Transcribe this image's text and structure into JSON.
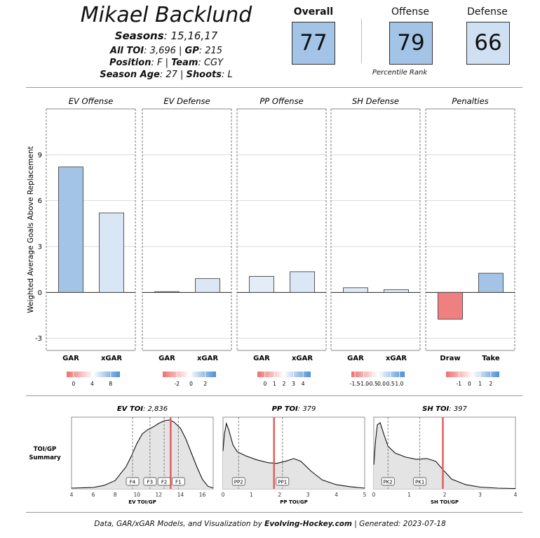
{
  "header": {
    "player_name": "Mikael Backlund",
    "seasons_label": "Seasons",
    "seasons_value": "15,16,17",
    "all_toi_label": "All TOI",
    "all_toi_value": "3,696",
    "gp_label": "GP",
    "gp_value": "215",
    "position_label": "Position",
    "position_value": "F",
    "team_label": "Team",
    "team_value": "CGY",
    "season_age_label": "Season Age",
    "season_age_value": "27",
    "shoots_label": "Shoots",
    "shoots_value": "L"
  },
  "ranks": {
    "overall_label": "Overall",
    "overall_value": "77",
    "offense_label": "Offense",
    "offense_value": "79",
    "defense_label": "Defense",
    "defense_value": "66",
    "caption": "Percentile Rank",
    "colors": {
      "overall": "#a3c4e6",
      "offense": "#a3c4e6",
      "defense": "#cfe0f3"
    }
  },
  "chart_data": [
    {
      "type": "bar",
      "ylabel": "Weighted Average Goals Above Replacement",
      "ylim": [
        -3.8,
        12
      ],
      "yticks": [
        -3,
        0,
        3,
        6,
        9
      ],
      "grid": true,
      "panels": [
        {
          "title": "EV Offense",
          "categories": [
            "GAR",
            "xGAR"
          ],
          "values": [
            8.2,
            5.2
          ],
          "colors": [
            "#a3c4e6",
            "#d9e6f5"
          ],
          "legend_ticks": [
            "0",
            "4",
            "8"
          ],
          "legend_range": [
            -1.5,
            10
          ]
        },
        {
          "title": "EV Defense",
          "categories": [
            "GAR",
            "xGAR"
          ],
          "values": [
            0.05,
            0.9
          ],
          "colors": [
            "#eef3f9",
            "#dbe7f5"
          ],
          "legend_ticks": [
            "-2",
            "0",
            "2"
          ],
          "legend_range": [
            -4,
            3.5
          ]
        },
        {
          "title": "PP Offense",
          "categories": [
            "GAR",
            "xGAR"
          ],
          "values": [
            1.05,
            1.35
          ],
          "colors": [
            "#e3ecf7",
            "#dbe7f5"
          ],
          "legend_ticks": [
            "0",
            "1",
            "2",
            "3",
            "4"
          ],
          "legend_range": [
            -0.8,
            4.8
          ]
        },
        {
          "title": "SH Defense",
          "categories": [
            "GAR",
            "xGAR"
          ],
          "values": [
            0.3,
            0.18
          ],
          "colors": [
            "#dfe9f6",
            "#e3ecf7"
          ],
          "legend_ticks": [
            "-1.5",
            "-1.0",
            "-0.5",
            "0.0",
            "0.5",
            "1.0"
          ],
          "legend_range": [
            -1.7,
            1.3
          ]
        },
        {
          "title": "Penalties",
          "categories": [
            "Draw",
            "Take"
          ],
          "values": [
            -1.75,
            1.25
          ],
          "colors": [
            "#ee8080",
            "#a3c4e6"
          ],
          "legend_ticks": [
            "-1",
            "0",
            "1",
            "2"
          ],
          "legend_range": [
            -2.2,
            2.8
          ]
        }
      ]
    },
    {
      "type": "area",
      "title": "TOI/GP Summary",
      "panels": [
        {
          "title_label": "EV TOI",
          "title_value": "2,836",
          "xlabel": "EV TOI/GP",
          "xlim": [
            4,
            17
          ],
          "xticks": [
            4,
            6,
            8,
            10,
            12,
            14,
            16
          ],
          "player_value": 13.1,
          "density": [
            [
              4,
              0.01
            ],
            [
              6,
              0.02
            ],
            [
              7,
              0.05
            ],
            [
              8,
              0.12
            ],
            [
              9,
              0.32
            ],
            [
              9.5,
              0.48
            ],
            [
              10,
              0.66
            ],
            [
              10.5,
              0.8
            ],
            [
              11,
              0.86
            ],
            [
              11.5,
              0.9
            ],
            [
              12,
              0.95
            ],
            [
              12.5,
              0.99
            ],
            [
              13,
              1.0
            ],
            [
              13.4,
              0.97
            ],
            [
              14,
              0.88
            ],
            [
              14.5,
              0.72
            ],
            [
              15,
              0.52
            ],
            [
              15.5,
              0.32
            ],
            [
              16,
              0.14
            ],
            [
              16.5,
              0.04
            ],
            [
              17,
              0.01
            ]
          ],
          "markers": [
            {
              "label": "F4",
              "x": 9.6
            },
            {
              "label": "F3",
              "x": 11.2
            },
            {
              "label": "F2",
              "x": 12.5
            },
            {
              "label": "F1",
              "x": 13.8
            }
          ]
        },
        {
          "title_label": "PP TOI",
          "title_value": "379",
          "xlabel": "PP TOI/GP",
          "xlim": [
            0,
            5
          ],
          "xticks": [
            0,
            1,
            2,
            3,
            4,
            5
          ],
          "player_value": 1.8,
          "density": [
            [
              0,
              0.55
            ],
            [
              0.05,
              0.8
            ],
            [
              0.12,
              0.95
            ],
            [
              0.2,
              0.86
            ],
            [
              0.35,
              0.64
            ],
            [
              0.5,
              0.54
            ],
            [
              0.8,
              0.48
            ],
            [
              1.2,
              0.42
            ],
            [
              1.6,
              0.38
            ],
            [
              1.9,
              0.37
            ],
            [
              2.2,
              0.4
            ],
            [
              2.5,
              0.44
            ],
            [
              2.75,
              0.4
            ],
            [
              3.1,
              0.26
            ],
            [
              3.5,
              0.13
            ],
            [
              4,
              0.06
            ],
            [
              4.5,
              0.03
            ],
            [
              5,
              0.01
            ]
          ],
          "markers": [
            {
              "label": "PP2",
              "x": 0.55
            },
            {
              "label": "PP1",
              "x": 2.1
            }
          ]
        },
        {
          "title_label": "SH TOI",
          "title_value": "397",
          "xlabel": "SH TOI/GP",
          "xlim": [
            0,
            4
          ],
          "xticks": [
            0,
            1,
            2,
            3,
            4
          ],
          "player_value": 1.95,
          "density": [
            [
              0,
              0.35
            ],
            [
              0.05,
              0.7
            ],
            [
              0.1,
              0.93
            ],
            [
              0.18,
              0.96
            ],
            [
              0.28,
              0.8
            ],
            [
              0.4,
              0.62
            ],
            [
              0.6,
              0.52
            ],
            [
              0.9,
              0.46
            ],
            [
              1.2,
              0.43
            ],
            [
              1.5,
              0.44
            ],
            [
              1.75,
              0.4
            ],
            [
              1.95,
              0.28
            ],
            [
              2.2,
              0.14
            ],
            [
              2.6,
              0.06
            ],
            [
              3.0,
              0.025
            ],
            [
              3.5,
              0.01
            ],
            [
              4,
              0.005
            ]
          ],
          "markers": [
            {
              "label": "PK2",
              "x": 0.4
            },
            {
              "label": "PK1",
              "x": 1.3
            }
          ]
        }
      ]
    }
  ],
  "footer": {
    "text1": "Data, GAR/xGAR Models, and Visualization by ",
    "source": "Evolving-Hockey.com",
    "text2": " | Generated: 2023-07-18"
  }
}
